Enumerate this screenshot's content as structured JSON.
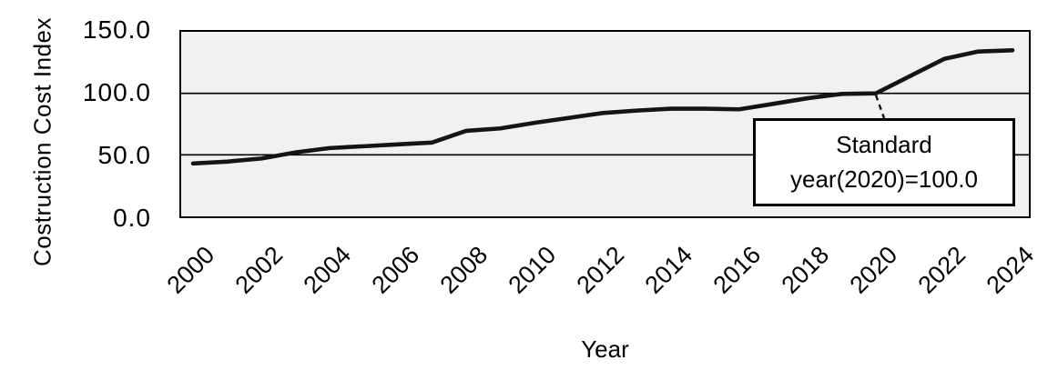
{
  "colors": {
    "page_background": "#ffffff",
    "plot_background": "#f1f1f1",
    "line": "#141414",
    "grid": "#000000",
    "text": "#000000"
  },
  "y_axis": {
    "title": "Costruction Cost Index",
    "tick_labels": [
      "150.0",
      "100.0",
      "50.0",
      "0.0"
    ]
  },
  "x_axis": {
    "title": "Year",
    "tick_labels": [
      "2000",
      "2002",
      "2004",
      "2006",
      "2008",
      "2010",
      "2012",
      "2014",
      "2016",
      "2018",
      "2020",
      "2022",
      "2024"
    ]
  },
  "annotation_box": {
    "line1": "Standard",
    "line2": "year(2020)=100.0"
  },
  "chart_data": {
    "type": "line",
    "title": "",
    "xlabel": "Year",
    "ylabel": "Costruction Cost Index",
    "x": [
      2000,
      2001,
      2002,
      2003,
      2004,
      2005,
      2006,
      2007,
      2008,
      2009,
      2010,
      2011,
      2012,
      2013,
      2014,
      2015,
      2016,
      2017,
      2018,
      2019,
      2020,
      2021,
      2022,
      2023,
      2024
    ],
    "values": [
      43,
      44.5,
      47,
      52,
      55.5,
      57,
      58.5,
      60,
      69.5,
      71.5,
      76,
      80,
      84,
      86,
      87.5,
      87.5,
      87,
      91.5,
      96,
      99.5,
      100,
      114,
      128,
      134,
      135
    ],
    "ylim": [
      0,
      150
    ],
    "y_ticks": [
      0,
      50,
      100,
      150
    ],
    "y_gridlines": [
      50,
      100
    ],
    "x_tick_step": 2,
    "grid": "horizontal-only",
    "legend": "none",
    "annotation": {
      "text": "Standard year(2020)=100.0",
      "points_to": {
        "x": 2020,
        "y": 100
      }
    }
  }
}
